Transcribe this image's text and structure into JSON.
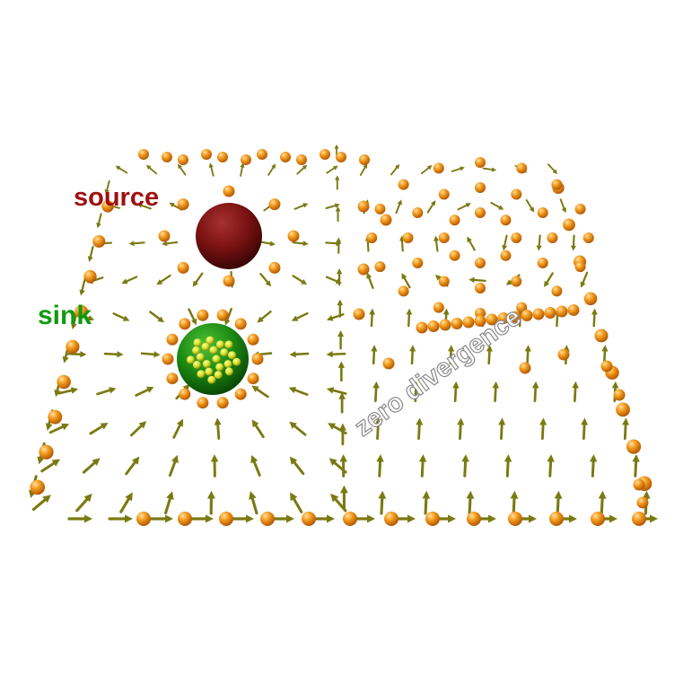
{
  "labels": {
    "source": "source",
    "sink": "sink",
    "zero_divergence": "zero divergence"
  },
  "colors": {
    "background": "#ffffff",
    "arrow": "#7a7a12",
    "arrow_highlight": "#a3a32a",
    "particle": "#f39a1c",
    "particle_highlight": "#ffd27a",
    "source_sphere": "#7a1212",
    "sink_sphere": "#1d8a12",
    "sink_particles": "#d8e02a",
    "source_label": "#9e1010",
    "sink_label": "#0f9b0f",
    "zero_label_fill": "#ffffff",
    "zero_label_stroke": "#8a8a8a"
  },
  "icons": {
    "source": "red-sphere",
    "sink": "green-sphere",
    "arrow": "arrow-glyph",
    "particle": "orange-ball"
  }
}
